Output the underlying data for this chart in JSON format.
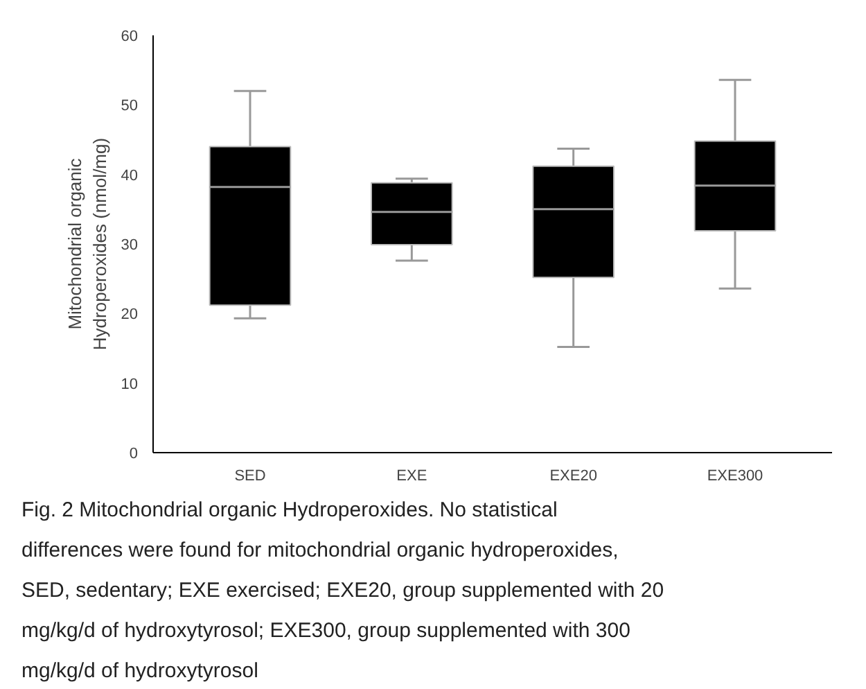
{
  "chart_data": {
    "type": "box",
    "ylabel": "Mitochondrial organic Hydroperoxides (nmol/mg)",
    "categories": [
      "SED",
      "EXE",
      "EXE20",
      "EXE300"
    ],
    "boxes": [
      {
        "low": 19.3,
        "q1": 21.2,
        "median": 38.2,
        "q3": 44.0,
        "high": 52.0
      },
      {
        "low": 27.6,
        "q1": 29.9,
        "median": 34.6,
        "q3": 38.8,
        "high": 39.4
      },
      {
        "low": 15.2,
        "q1": 25.2,
        "median": 35.0,
        "q3": 41.2,
        "high": 43.7
      },
      {
        "low": 23.6,
        "q1": 31.9,
        "median": 38.4,
        "q3": 44.8,
        "high": 53.6
      }
    ],
    "color": "#000000",
    "ylim": [
      0,
      60
    ],
    "yticks": [
      0,
      10,
      20,
      30,
      40,
      50,
      60
    ],
    "grid": false,
    "annotations": [
      "Fig. 2 Mitochondrial organic Hydroperoxides. No statistical differences were found for mitochondrial organic hydroperoxides, SED, sedentary; EXE exercised; EXE20, group supplemented with 20 mg/kg/d of hydroxytyrosol; EXE300, group supplemented with 300 mg/kg/d of hydroxytyrosol"
    ]
  }
}
